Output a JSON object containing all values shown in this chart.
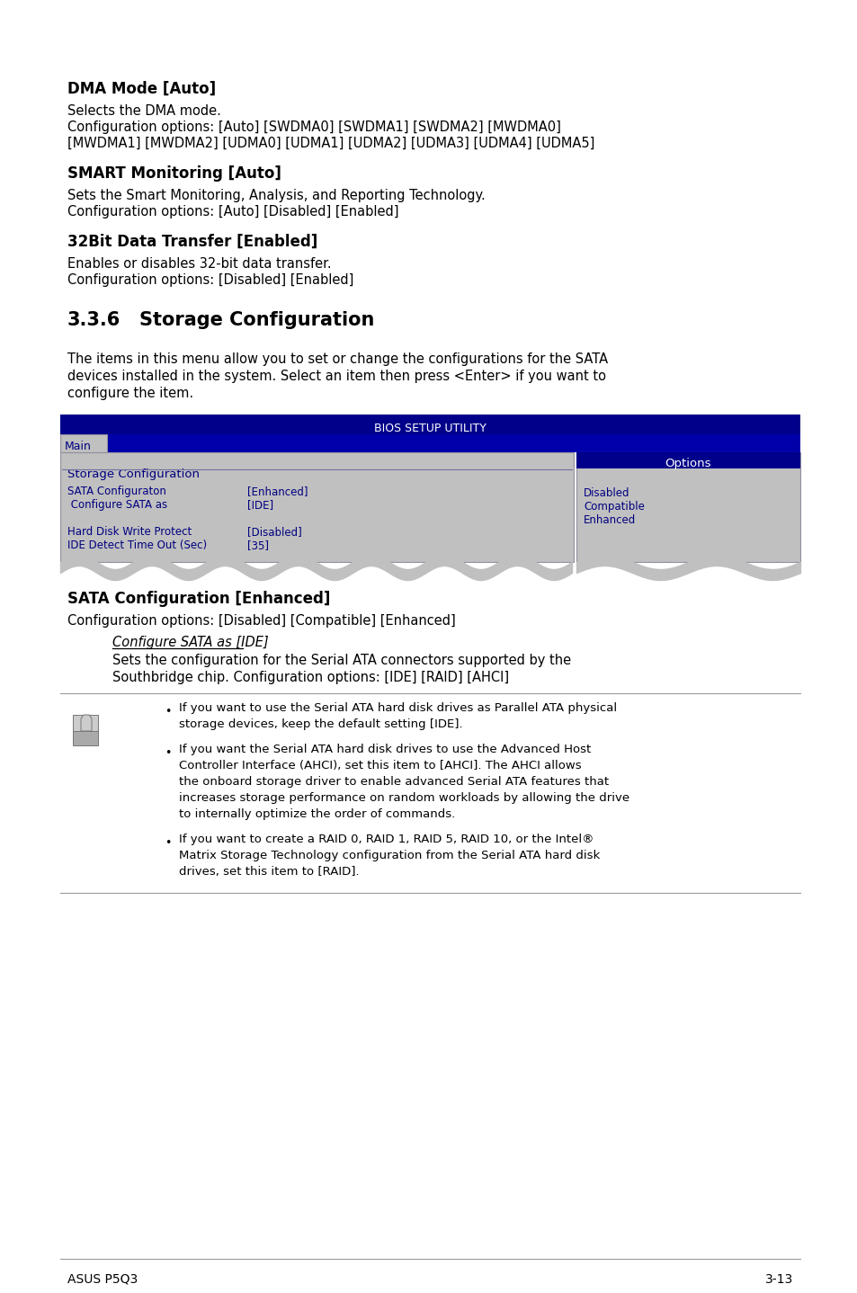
{
  "page_bg": "#ffffff",
  "footer_left": "ASUS P5Q3",
  "footer_right": "3-13",
  "section_dma_title": "DMA Mode [Auto]",
  "section_dma_body": [
    "Selects the DMA mode.",
    "Configuration options: [Auto] [SWDMA0] [SWDMA1] [SWDMA2] [MWDMA0]",
    "[MWDMA1] [MWDMA2] [UDMA0] [UDMA1] [UDMA2] [UDMA3] [UDMA4] [UDMA5]"
  ],
  "section_smart_title": "SMART Monitoring [Auto]",
  "section_smart_body": [
    "Sets the Smart Monitoring, Analysis, and Reporting Technology.",
    "Configuration options: [Auto] [Disabled] [Enabled]"
  ],
  "section_32bit_title": "32Bit Data Transfer [Enabled]",
  "section_32bit_body": [
    "Enables or disables 32-bit data transfer.",
    "Configuration options: [Disabled] [Enabled]"
  ],
  "section_336_numeral": "3.3.6",
  "section_336_heading": "Storage Configuration",
  "section_336_body": [
    "The items in this menu allow you to set or change the configurations for the SATA",
    "devices installed in the system. Select an item then press <Enter> if you want to",
    "configure the item."
  ],
  "bios_title": "BIOS SETUP UTILITY",
  "bios_tab": "Main",
  "bios_section_header": "Storage Configuration",
  "bios_options_header": "Options",
  "bios_rows": [
    [
      "SATA Configuraton",
      "[Enhanced]"
    ],
    [
      " Configure SATA as",
      "[IDE]"
    ],
    [
      "",
      ""
    ],
    [
      "Hard Disk Write Protect",
      "[Disabled]"
    ],
    [
      "IDE Detect Time Out (Sec)",
      "[35]"
    ]
  ],
  "bios_options_items": [
    "Disabled",
    "Compatible",
    "Enhanced"
  ],
  "section_sata_title": "SATA Configuration [Enhanced]",
  "section_sata_body": "Configuration options: [Disabled] [Compatible] [Enhanced]",
  "section_sata_sub_title": "Configure SATA as [IDE]",
  "section_sata_sub_body": [
    "Sets the configuration for the Serial ATA connectors supported by the",
    "Southbridge chip. Configuration options: [IDE] [RAID] [AHCI]"
  ],
  "bullets": [
    [
      "If you want to use the Serial ATA hard disk drives as Parallel ATA physical",
      "storage devices, keep the default setting [IDE]."
    ],
    [
      "If you want the Serial ATA hard disk drives to use the Advanced Host",
      "Controller Interface (AHCI), set this item to [AHCI]. The AHCI allows",
      "the onboard storage driver to enable advanced Serial ATA features that",
      "increases storage performance on random workloads by allowing the drive",
      "to internally optimize the order of commands."
    ],
    [
      "If you want to create a RAID 0, RAID 1, RAID 5, RAID 10, or the Intel®",
      "Matrix Storage Technology configuration from the Serial ATA hard disk",
      "drives, set this item to [RAID]."
    ]
  ],
  "dark_blue": "#00008B",
  "med_blue": "#0000AA",
  "bios_text_blue": "#000080",
  "bios_bg": "#C0C0C0",
  "bios_border": "#9090A0"
}
